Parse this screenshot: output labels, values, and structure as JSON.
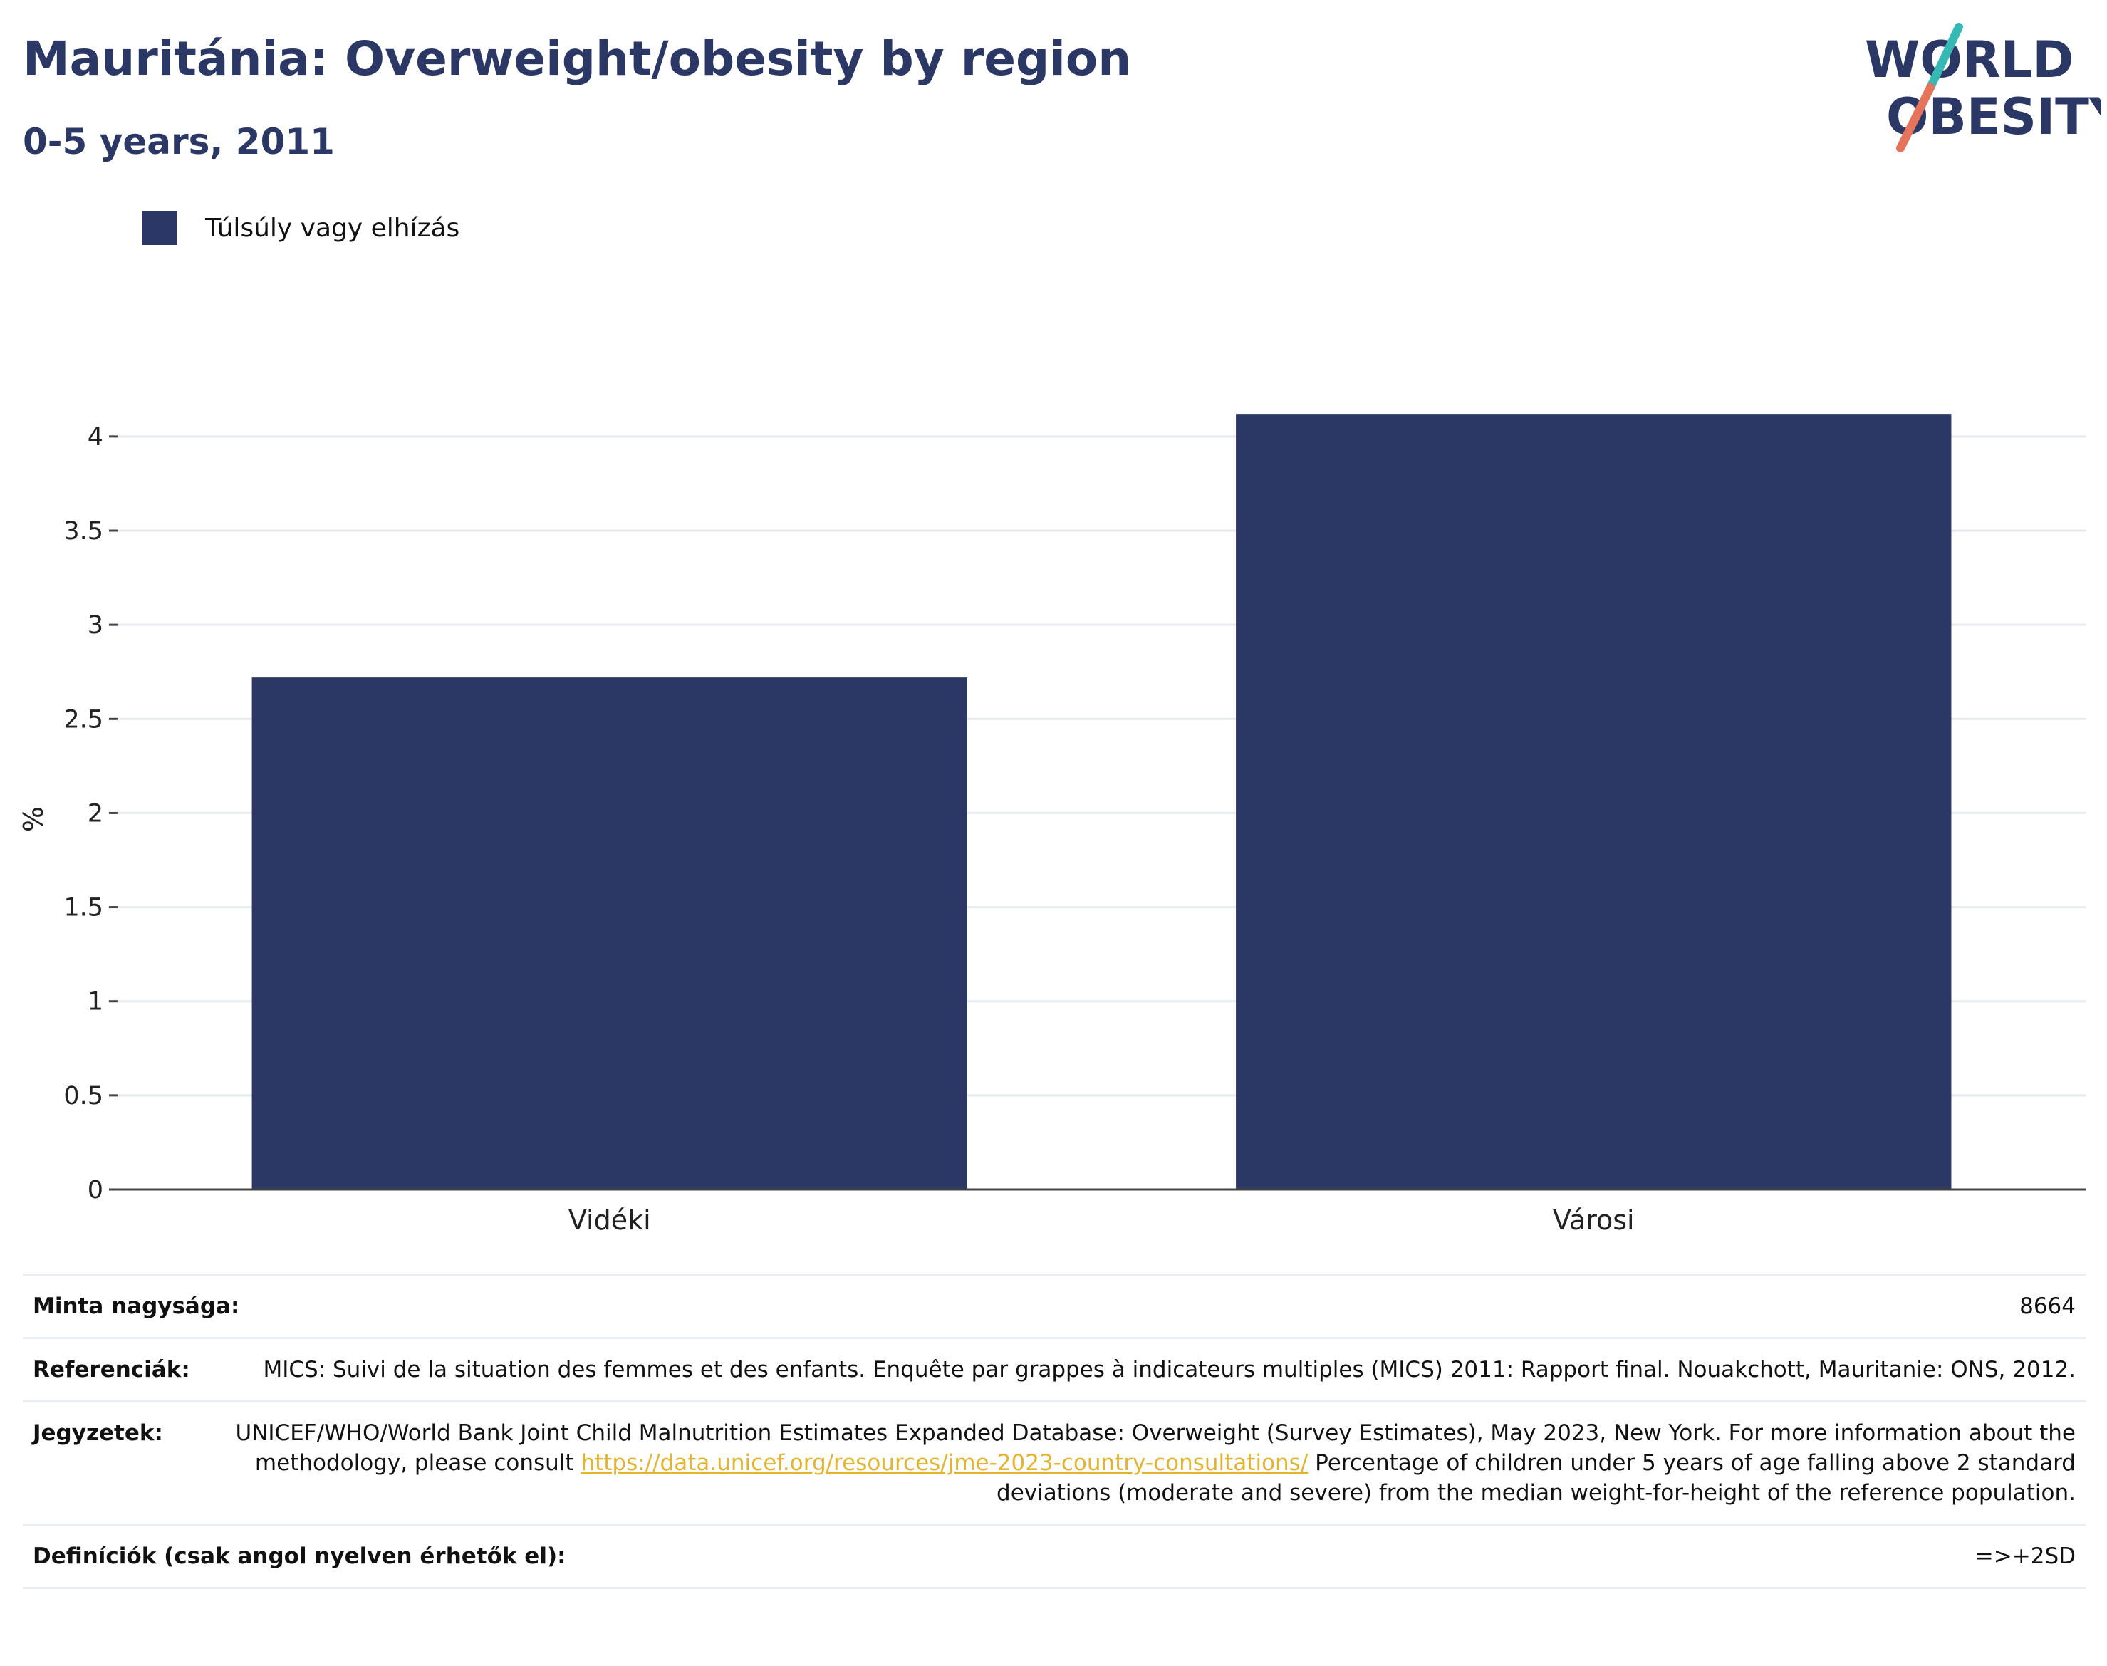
{
  "header": {
    "title": "Mauritánia: Overweight/obesity by region",
    "subtitle": "0-5 years, 2011"
  },
  "logo": {
    "line1": "WORLD",
    "line2": "OBESITY",
    "colors": {
      "text": "#2b3764",
      "slash_top": "#36b9b4",
      "slash_bottom": "#e6735c"
    }
  },
  "legend": {
    "label": "Túlsúly vagy elhízás",
    "color": "#2b3764"
  },
  "chart_data": {
    "type": "bar",
    "categories": [
      "Vidéki",
      "Városi"
    ],
    "series": [
      {
        "name": "Túlsúly vagy elhízás",
        "values": [
          2.72,
          4.12
        ],
        "color": "#2b3764"
      }
    ],
    "ylabel": "%",
    "ylim": [
      0,
      4.2
    ],
    "yticks": [
      0,
      0.5,
      1,
      1.5,
      2,
      2.5,
      3,
      3.5,
      4
    ],
    "ytick_labels": [
      "0",
      "0.5",
      "1",
      "1.5",
      "2",
      "2.5",
      "3",
      "3.5",
      "4"
    ],
    "grid": true
  },
  "meta": {
    "sample_label": "Minta nagysága:",
    "sample_value": "8664",
    "ref_label": "Referenciák:",
    "ref_value": "MICS: Suivi de la situation des femmes et des enfants. Enquête par grappes à indicateurs multiples (MICS) 2011: Rapport final. Nouakchott, Mauritanie: ONS, 2012.",
    "notes_label": "Jegyzetek:",
    "notes_text_1": "UNICEF/WHO/World Bank Joint Child Malnutrition Estimates Expanded Database: Overweight (Survey Estimates), May 2023, New York. For more information about the methodology, please consult ",
    "notes_link": "https://data.unicef.org/resources/jme-2023-country-consultations/",
    "notes_text_2": " Percentage of children under 5 years of age falling above 2 standard deviations (moderate and severe) from the median weight-for-height of the reference population.",
    "def_label": "Definíciók (csak angol nyelven érhetők el):",
    "def_value": "=>+2SD"
  }
}
